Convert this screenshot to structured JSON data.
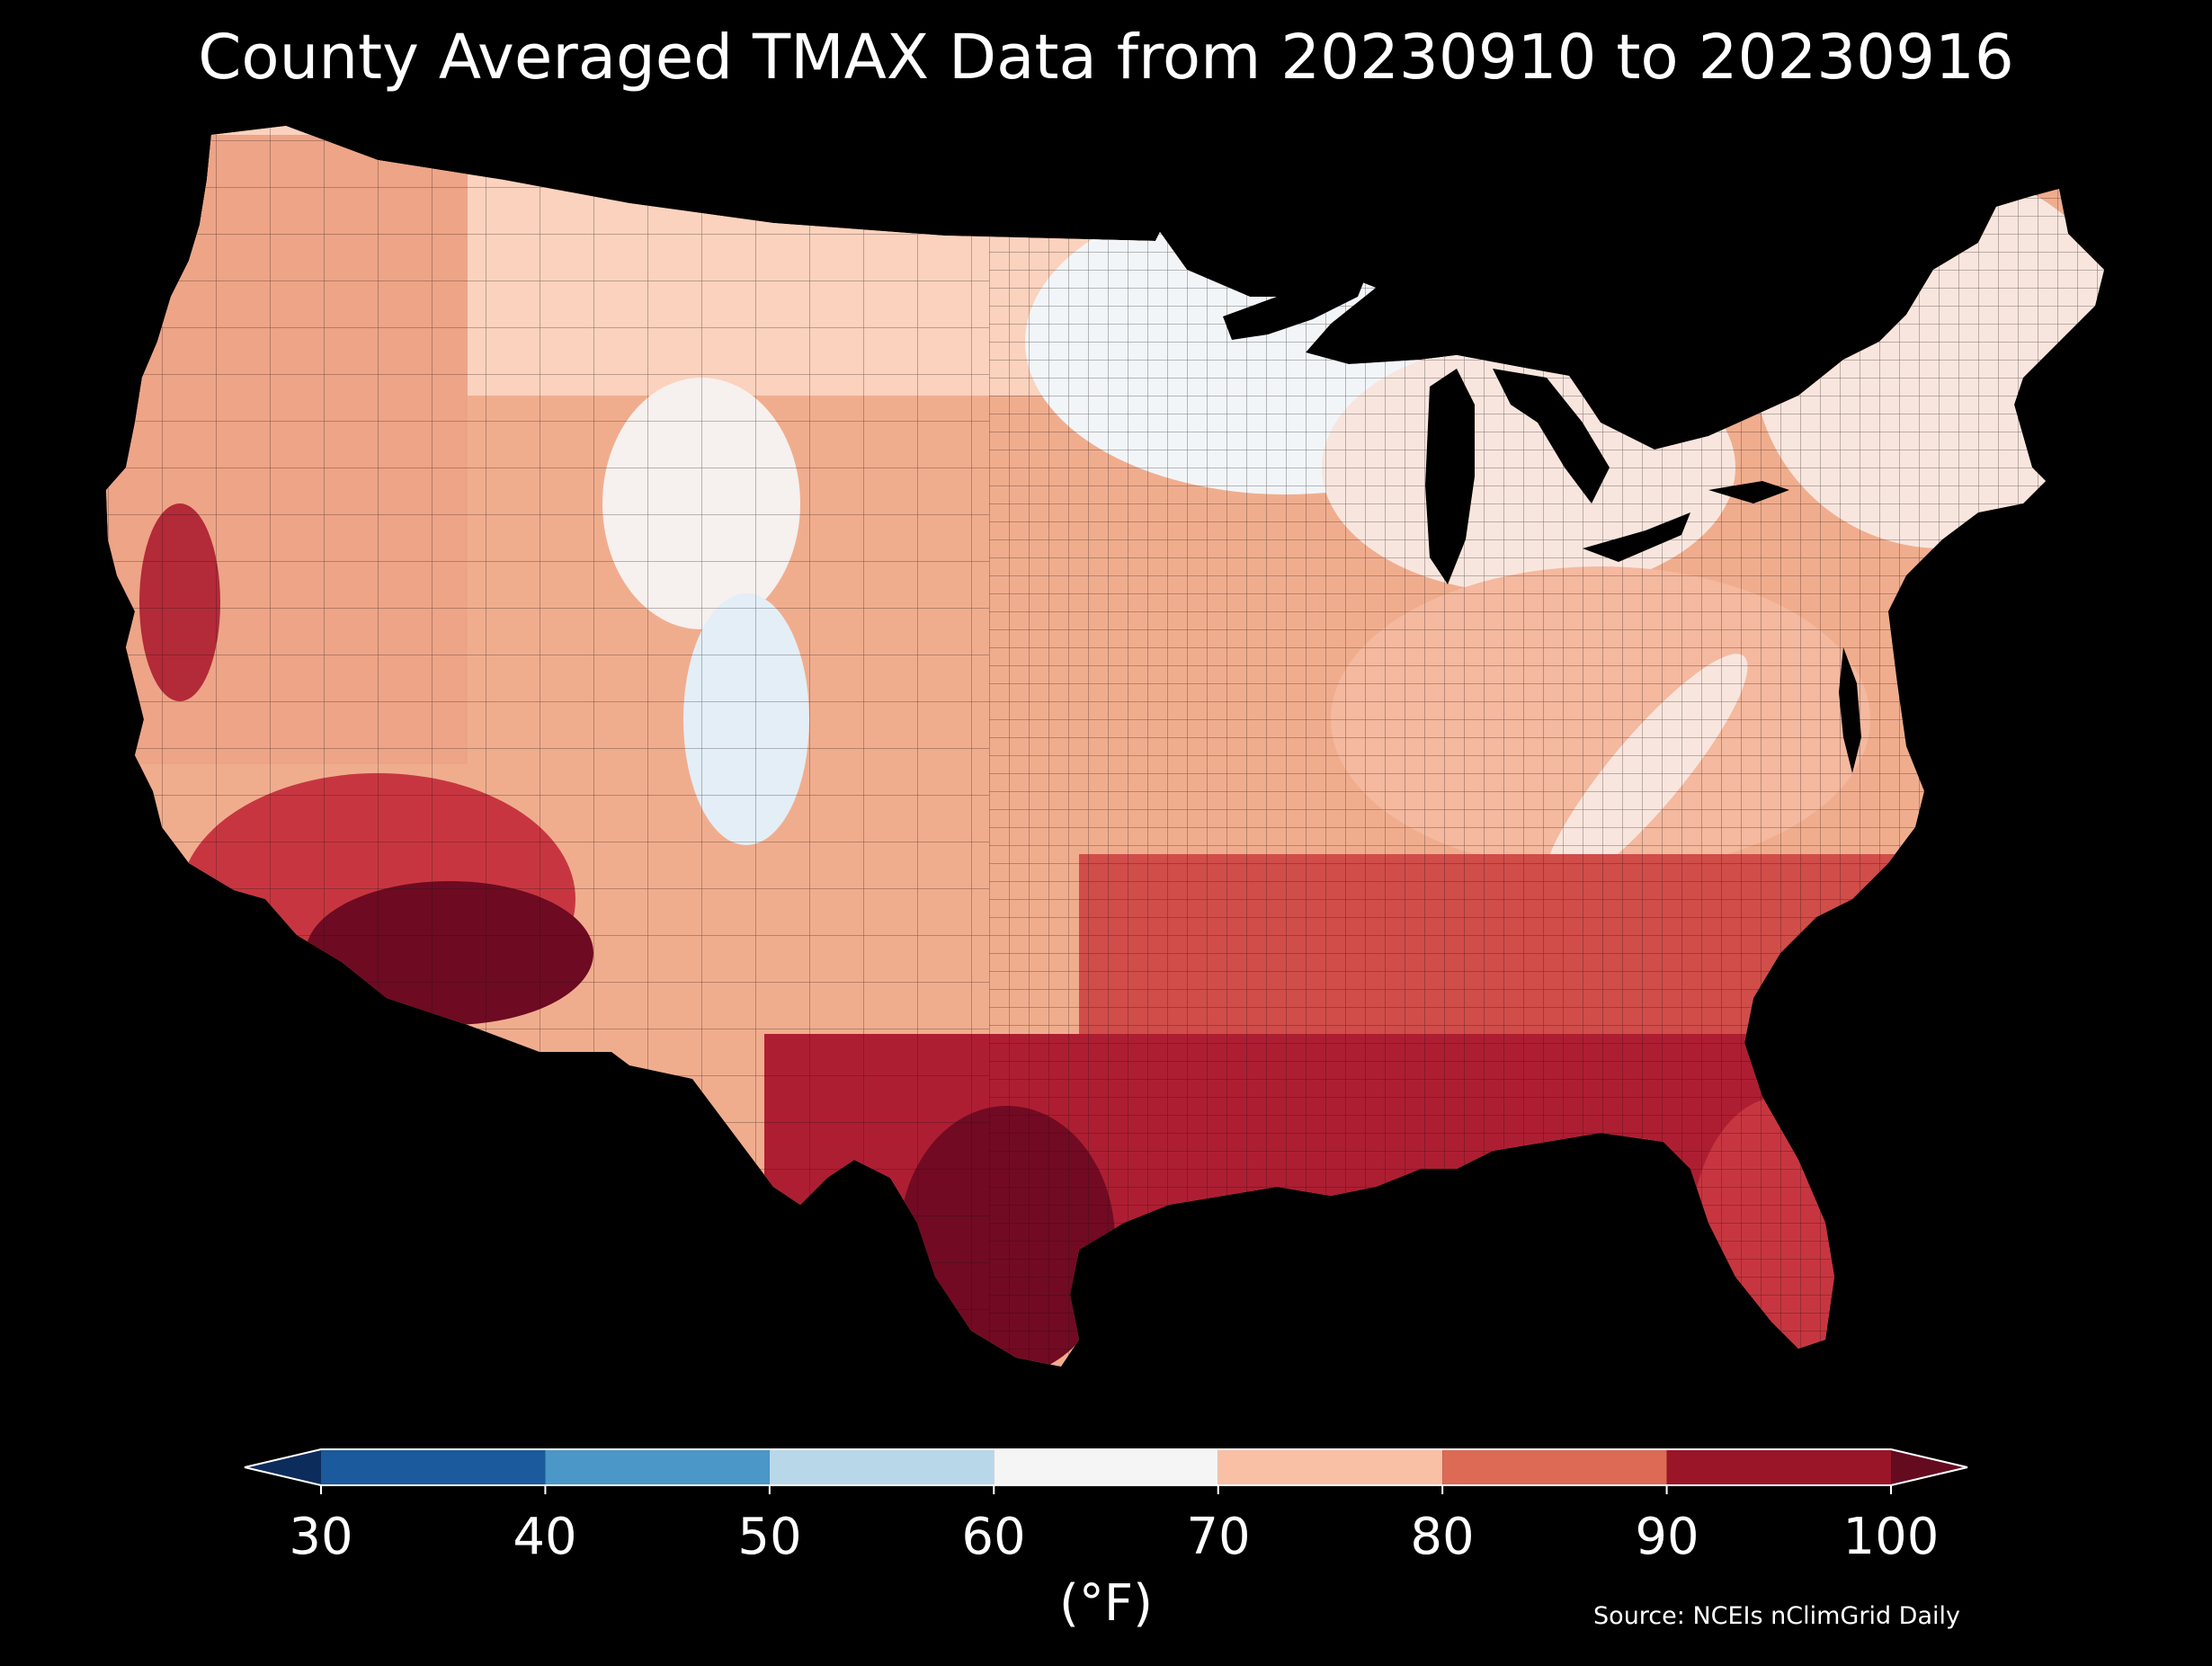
{
  "title": "County Averaged TMAX Data from 20230910 to 20230916",
  "source": "Source: NCEIs nClimGrid Daily",
  "colorbar": {
    "unit": "(°F)",
    "ticks": [
      "30",
      "40",
      "50",
      "60",
      "70",
      "80",
      "90",
      "100"
    ],
    "bins": [
      {
        "range": [
          30,
          40
        ],
        "color": "#1b5a9c"
      },
      {
        "range": [
          40,
          50
        ],
        "color": "#4a97c8"
      },
      {
        "range": [
          50,
          60
        ],
        "color": "#b8d8ea"
      },
      {
        "range": [
          60,
          70
        ],
        "color": "#f5f5f5"
      },
      {
        "range": [
          70,
          80
        ],
        "color": "#f9c0a5"
      },
      {
        "range": [
          80,
          90
        ],
        "color": "#dc6a55"
      },
      {
        "range": [
          90,
          100
        ],
        "color": "#9a1528"
      }
    ],
    "extend_low_color": "#0c2c5c",
    "extend_high_color": "#640b20"
  },
  "map": {
    "subject": "Contiguous United States counties",
    "regions": [
      {
        "name": "northern-plains-rockies",
        "tmax_f": 72,
        "color": "#fbd2bd"
      },
      {
        "name": "pacific-northwest",
        "tmax_f": 78,
        "color": "#eea487"
      },
      {
        "name": "central-valley-california",
        "tmax_f": 92,
        "color": "#b32a38"
      },
      {
        "name": "desert-southwest",
        "tmax_f": 100,
        "color": "#6e0a22"
      },
      {
        "name": "utah-colorado-high-terrain",
        "tmax_f": 59,
        "color": "#e4eef6"
      },
      {
        "name": "upper-midwest-great-lakes",
        "tmax_f": 64,
        "color": "#f2f5f8"
      },
      {
        "name": "central-plains",
        "tmax_f": 78,
        "color": "#f0ad8e"
      },
      {
        "name": "ohio-valley-appalachia",
        "tmax_f": 76,
        "color": "#f4b99f"
      },
      {
        "name": "new-england",
        "tmax_f": 70,
        "color": "#f8e6de"
      },
      {
        "name": "southeast",
        "tmax_f": 86,
        "color": "#d04d4a"
      },
      {
        "name": "gulf-coast",
        "tmax_f": 92,
        "color": "#ae1e32"
      },
      {
        "name": "south-texas",
        "tmax_f": 99,
        "color": "#720a23"
      },
      {
        "name": "florida",
        "tmax_f": 89,
        "color": "#c73640"
      }
    ]
  }
}
